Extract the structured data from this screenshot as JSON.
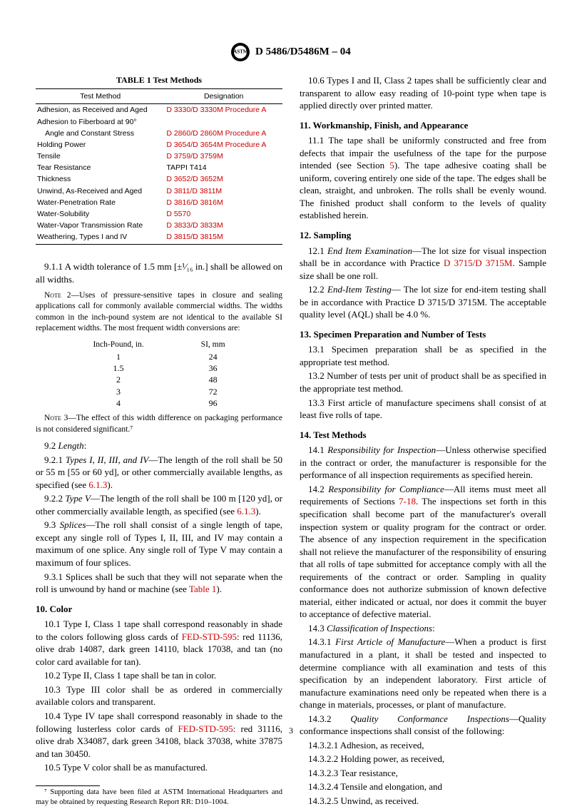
{
  "header": {
    "designation": "D 5486/D5486M – 04"
  },
  "table1": {
    "title": "TABLE 1  Test Methods",
    "head": {
      "c1": "Test Method",
      "c2": "Designation"
    },
    "rows": [
      {
        "name": "Adhesion, as Received and Aged",
        "desig": "D 3330/D 3330M Procedure A",
        "desigRed": true
      },
      {
        "name": "Adhesion to Fiberboard at 90°",
        "desig": ""
      },
      {
        "name": "    Angle and Constant Stress",
        "desig": "D 2860/D 2860M Procedure A",
        "desigRed": true
      },
      {
        "name": "Holding Power",
        "desig": "D 3654/D 3654M Procedure A",
        "desigRed": true
      },
      {
        "name": "Tensile",
        "desig": "D 3759/D 3759M",
        "desigRed": true
      },
      {
        "name": "Tear Resistance",
        "desig": "TAPPI T414"
      },
      {
        "name": "Thickness",
        "desig": "D 3652/D 3652M",
        "desigRed": true
      },
      {
        "name": "Unwind, As-Received and Aged",
        "desig": "D 3811/D 3811M",
        "desigRed": true
      },
      {
        "name": "Water-Penetration Rate",
        "desig": "D 3816/D 3816M",
        "desigRed": true
      },
      {
        "name": "Water-Solubility",
        "desig": "D 5570",
        "desigRed": true
      },
      {
        "name": "Water-Vapor Transmission Rate",
        "desig": "D 3833/D 3833M",
        "desigRed": true
      },
      {
        "name": "Weathering, Types I and IV",
        "desig": "D 3815/D 3815M",
        "desigRed": true
      }
    ]
  },
  "left": {
    "p911": "9.1.1 A width tolerance of 1.5 mm [±¹⁄₁₆ in.] shall be allowed on all widths.",
    "note2label": "Note 2",
    "note2": "—Uses of pressure-sensitive tapes in closure and sealing applications call for commonly available commercial widths. The widths common in the inch-pound system are not identical to the available SI replacement widths. The most frequent width conversions are:",
    "conv": {
      "h1": "Inch-Pound, in.",
      "h2": "SI, mm",
      "rows": [
        {
          "a": "1",
          "b": "24"
        },
        {
          "a": "1.5",
          "b": "36"
        },
        {
          "a": "2",
          "b": "48"
        },
        {
          "a": "3",
          "b": "72"
        },
        {
          "a": "4",
          "b": "96"
        }
      ]
    },
    "note3label": "Note 3",
    "note3": "—The effect of this width difference on packaging performance is not considered significant.⁷",
    "p92head": "Length",
    "p921a": "Types I, II, III, and IV",
    "p921b": "—The length of the roll shall be 50 or 55 m [55 or 60 yd], or other commercially available lengths, as specified (see ",
    "p921ref": "6.1.3",
    "p921c": ").",
    "p922a": "Type V",
    "p922b": "—The length of the roll shall be 100 m [120 yd], or other commercially available length, as specified (see ",
    "p922ref": "6.1.3",
    "p922c": ").",
    "p93a": "Splices",
    "p93b": "—The roll shall consist of a single length of tape, except any single roll of Types I, II, III, and IV may contain a maximum of one splice. Any single roll of Type V may contain a maximum of four splices.",
    "p931a": "9.3.1 Splices shall be such that they will not separate when the roll is unwound by hand or machine (see ",
    "p931ref": "Table 1",
    "p931b": ").",
    "s10": "10.  Color",
    "p101a": "10.1 Type I, Class 1 tape shall correspond reasonably in shade to the colors following gloss cards of ",
    "p101ref": "FED-STD-595",
    "p101b": ": red 11136, olive drab 14087, dark green 14110, black 17038, and tan (no color card available for tan).",
    "p102": "10.2 Type II, Class 1 tape shall be tan in color.",
    "p103": "10.3 Type III color shall be as ordered in commercially available colors and transparent.",
    "p104a": "10.4 Type IV tape shall correspond reasonably in shade to the following lusterless color cards of ",
    "p104ref": "FED-STD-595",
    "p104b": ": red 31116, olive drab X34087, dark green 34108, black 37038, white 37875 and tan 30450.",
    "p105": "10.5 Type V color shall be as manufactured.",
    "footnote": "⁷ Supporting data have been filed at ASTM International Headquarters and may be obtained by requesting Research Report RR: D10–1004."
  },
  "right": {
    "p106": "10.6 Types I and II, Class 2 tapes shall be sufficiently clear and transparent to allow easy reading of 10-point type when tape is applied directly over printed matter.",
    "s11": "11.  Workmanship, Finish, and Appearance",
    "p111a": "11.1 The tape shall be uniformly constructed and free from defects that impair the usefulness of the tape for the purpose intended (see Section ",
    "p111ref": "5",
    "p111b": "). The tape adhesive coating shall be uniform, covering entirely one side of the tape. The edges shall be clean, straight, and unbroken. The rolls shall be evenly wound. The finished product shall conform to the levels of quality established herein.",
    "s12": "12.  Sampling",
    "p121a": "End Item Examination",
    "p121b": "—The lot size for visual inspection shall be in accordance with Practice ",
    "p121ref": "D 3715/D 3715M",
    "p121c": ". Sample size shall be one roll.",
    "p122a": "End-Item Testing",
    "p122b": "— The lot size for end-item testing shall be in accordance with Practice D 3715/D 3715M. The acceptable quality level (AQL) shall be 4.0 %.",
    "s13": "13.  Specimen Preparation and Number of Tests",
    "p131": "13.1 Specimen preparation shall be as specified in the appropriate test method.",
    "p132": "13.2 Number of tests per unit of product shall be as specified in the appropriate test method.",
    "p133": "13.3 First article of manufacture specimens shall consist of at least five rolls of tape.",
    "s14": "14.  Test Methods",
    "p141a": "Responsibility for Inspection",
    "p141b": "—Unless otherwise specified in the contract or order, the manufacturer is responsible for the performance of all inspection requirements as specified herein.",
    "p142a": "Responsibility for Compliance",
    "p142b": "—All items must meet all requirements of Sections ",
    "p142ref": "7-18",
    "p142c": ". The inspections set forth in this specification shall become part of the manufacturer's overall inspection system or quality program for the contract or order. The absence of any inspection requirement in the specification shall not relieve the manufacturer of the responsibility of ensuring that all rolls of tape submitted for acceptance comply with all the requirements of the contract or order. Sampling in quality conformance does not authorize submission of known defective material, either indicated or actual, nor does it commit the buyer to acceptance of defective material.",
    "p143": "Classification of Inspections",
    "p1431a": "First Article of Manufacture",
    "p1431b": "—When a product is first manufactured in a plant, it shall be tested and inspected to determine compliance with all examination and tests of this specification by an independent laboratory. First article of manufacture examinations need only be repeated when there is a change in materials, processes, or plant of manufacture.",
    "p1432a": "Quality Conformance Inspections",
    "p1432b": "—Quality conformance inspections shall consist of the following:",
    "p14321": "14.3.2.1 Adhesion, as received,",
    "p14322": "14.3.2.2 Holding power, as received,",
    "p14323": "14.3.2.3 Tear resistance,",
    "p14324": "14.3.2.4 Tensile and elongation, and",
    "p14325": "14.3.2.5 Unwind, as received."
  },
  "pagenum": "3"
}
